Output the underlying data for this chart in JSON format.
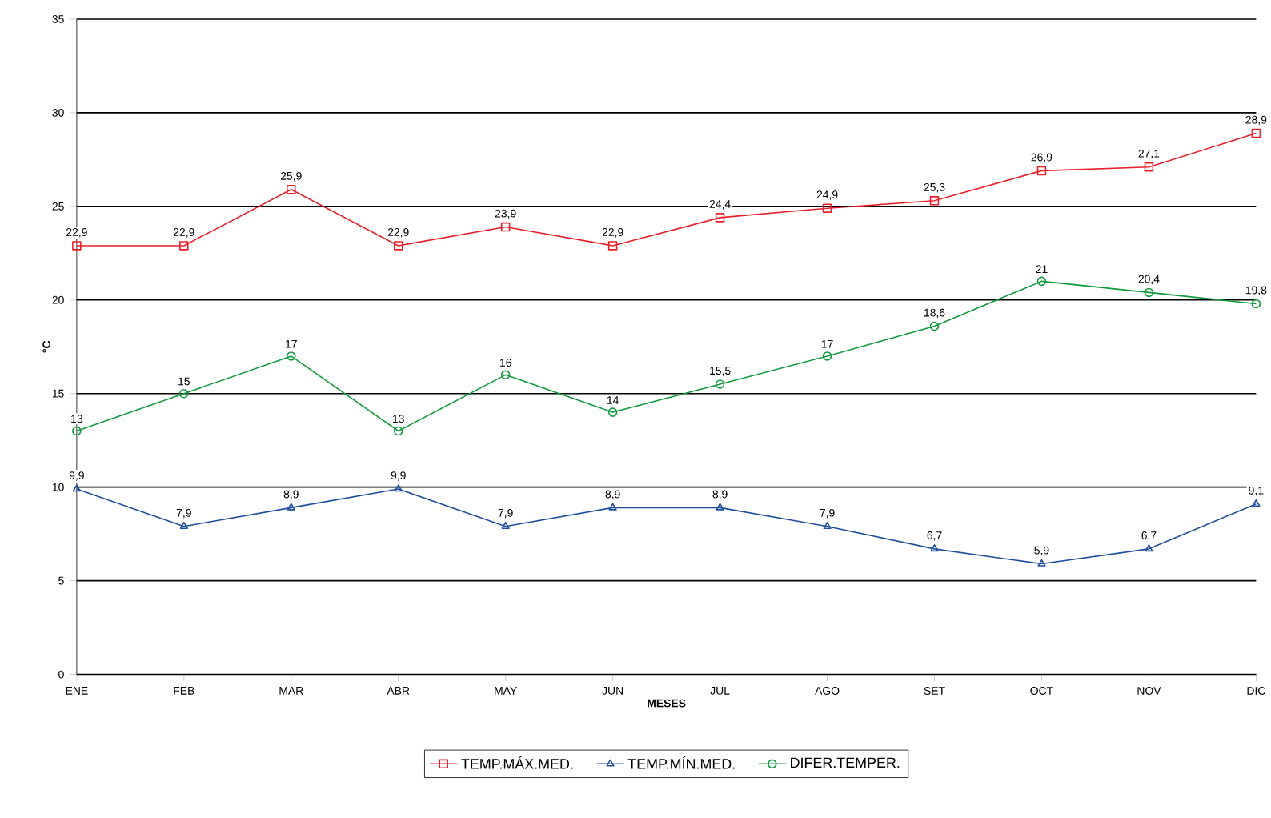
{
  "chart_data": {
    "type": "line",
    "xlabel": "MESES",
    "ylabel": "°C",
    "categories": [
      "ENE",
      "FEB",
      "MAR",
      "ABR",
      "MAY",
      "JUN",
      "JUL",
      "AGO",
      "SET",
      "OCT",
      "NOV",
      "DIC"
    ],
    "series": [
      {
        "name": "TEMP.MÁX.MED.",
        "color": "#e8202a",
        "marker": "square",
        "values": [
          22.9,
          22.9,
          25.9,
          22.9,
          23.9,
          22.9,
          24.4,
          24.9,
          25.3,
          26.9,
          27.1,
          28.9
        ],
        "value_labels": [
          "22,9",
          "22,9",
          "25,9",
          "22,9",
          "23,9",
          "22,9",
          "24,4",
          "24,9",
          "25,3",
          "26,9",
          "27,1",
          "28,9"
        ]
      },
      {
        "name": "TEMP.MÍN.MED.",
        "color": "#1f4e9c",
        "marker": "triangle",
        "values": [
          9.9,
          7.9,
          8.9,
          9.9,
          7.9,
          8.9,
          8.9,
          7.9,
          6.7,
          5.9,
          6.7,
          9.1
        ],
        "value_labels": [
          "9,9",
          "7,9",
          "8,9",
          "9,9",
          "7,9",
          "8,9",
          "8,9",
          "7,9",
          "6,7",
          "5,9",
          "6,7",
          "9,1"
        ]
      },
      {
        "name": "DIFER.TEMPER.",
        "color": "#109a3c",
        "marker": "circle",
        "values": [
          13,
          15,
          17,
          13,
          16,
          14,
          15.5,
          17,
          18.6,
          21,
          20.4,
          19.8
        ],
        "value_labels": [
          "13",
          "15",
          "17",
          "13",
          "16",
          "14",
          "15,5",
          "17",
          "18,6",
          "21",
          "20,4",
          "19,8"
        ]
      }
    ],
    "ylim": [
      0,
      35
    ],
    "yticks": [
      0,
      5,
      10,
      15,
      20,
      25,
      30,
      35
    ],
    "grid": "y",
    "legend": "bottom",
    "line_style": "solid"
  }
}
